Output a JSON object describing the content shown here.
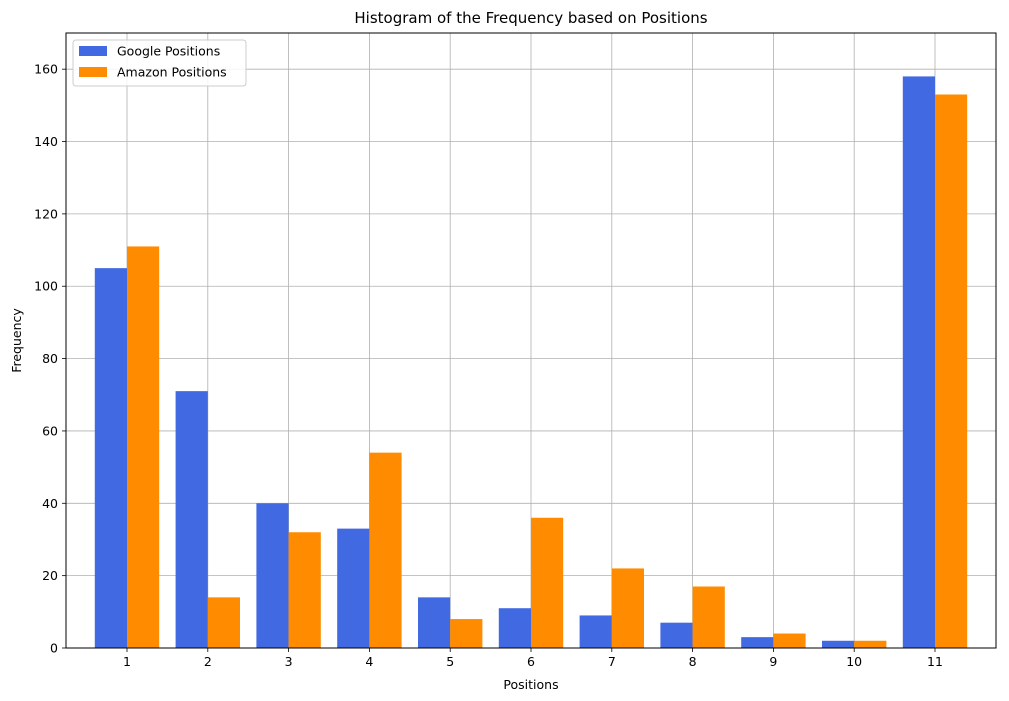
{
  "chart_data": {
    "type": "bar",
    "title": "Histogram of the Frequency based on Positions",
    "xlabel": "Positions",
    "ylabel": "Frequency",
    "categories": [
      "1",
      "2",
      "3",
      "4",
      "5",
      "6",
      "7",
      "8",
      "9",
      "10",
      "11"
    ],
    "series": [
      {
        "name": "Google Positions",
        "color": "#4169e1",
        "values": [
          105,
          71,
          40,
          33,
          14,
          11,
          9,
          7,
          3,
          2,
          158
        ]
      },
      {
        "name": "Amazon Positions",
        "color": "#ff8c00",
        "values": [
          111,
          14,
          32,
          54,
          8,
          36,
          22,
          17,
          4,
          2,
          153
        ]
      }
    ],
    "ylim": [
      0,
      170
    ],
    "yticks": [
      0,
      20,
      40,
      60,
      80,
      100,
      120,
      140,
      160
    ],
    "grid": true,
    "legend_position": "top-left"
  }
}
